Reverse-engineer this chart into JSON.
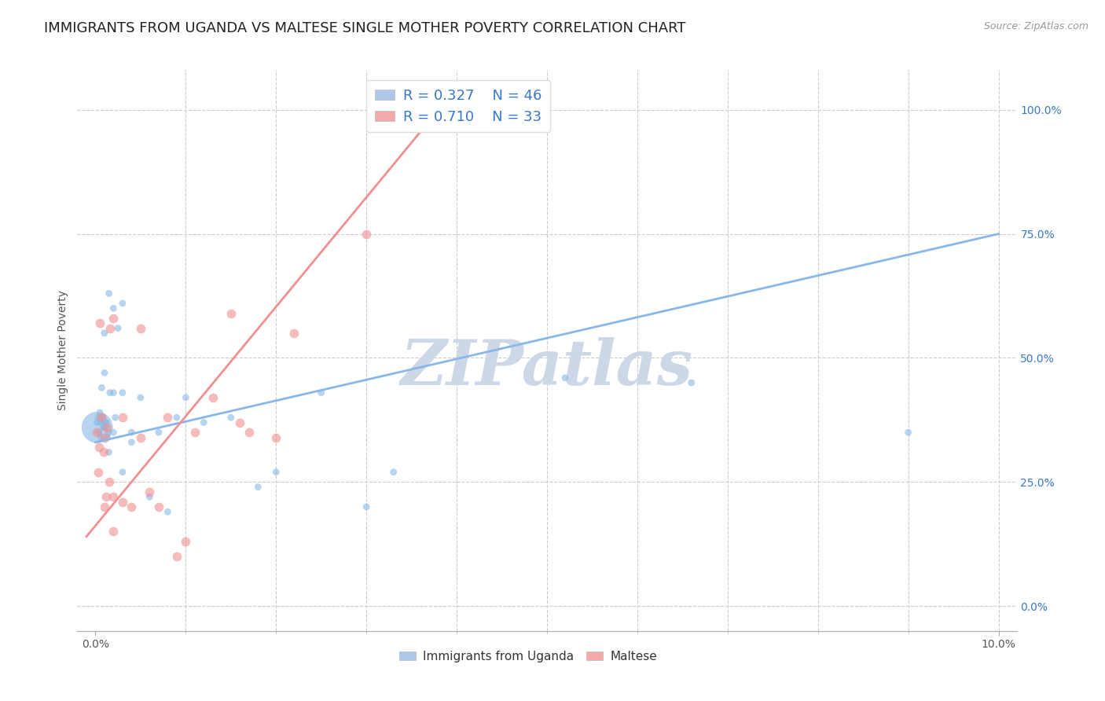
{
  "title": "IMMIGRANTS FROM UGANDA VS MALTESE SINGLE MOTHER POVERTY CORRELATION CHART",
  "source": "Source: ZipAtlas.com",
  "ylabel": "Single Mother Poverty",
  "x_tick_labels": [
    "0.0%",
    "",
    "",
    "",
    "",
    "",
    "",
    "",
    "",
    "",
    "10.0%"
  ],
  "x_tick_values": [
    0.0,
    0.01,
    0.02,
    0.03,
    0.04,
    0.05,
    0.06,
    0.07,
    0.08,
    0.09,
    0.1
  ],
  "x_minor_ticks": [
    0.01,
    0.02,
    0.03,
    0.04,
    0.05,
    0.06,
    0.07,
    0.08,
    0.09
  ],
  "y_tick_labels": [
    "0.0%",
    "25.0%",
    "50.0%",
    "75.0%",
    "100.0%"
  ],
  "y_tick_values": [
    0.0,
    0.25,
    0.5,
    0.75,
    1.0
  ],
  "xlim": [
    -0.002,
    0.102
  ],
  "ylim": [
    -0.05,
    1.08
  ],
  "legend_entries": [
    {
      "label": "Immigrants from Uganda",
      "color": "#aec6e8",
      "R": "0.327",
      "N": "46"
    },
    {
      "label": "Maltese",
      "color": "#f4aaaa",
      "R": "0.710",
      "N": "33"
    }
  ],
  "blue_scatter_x": [
    0.0002,
    0.0002,
    0.0003,
    0.0004,
    0.0005,
    0.0006,
    0.0006,
    0.0007,
    0.0008,
    0.0009,
    0.001,
    0.001,
    0.001,
    0.001,
    0.0012,
    0.0013,
    0.0014,
    0.0015,
    0.0015,
    0.0016,
    0.002,
    0.002,
    0.002,
    0.0022,
    0.0025,
    0.003,
    0.003,
    0.003,
    0.004,
    0.004,
    0.005,
    0.006,
    0.007,
    0.008,
    0.009,
    0.01,
    0.012,
    0.015,
    0.018,
    0.02,
    0.025,
    0.03,
    0.033,
    0.052,
    0.066,
    0.09
  ],
  "blue_scatter_y": [
    0.36,
    0.37,
    0.38,
    0.35,
    0.39,
    0.34,
    0.37,
    0.44,
    0.38,
    0.36,
    0.36,
    0.37,
    0.47,
    0.55,
    0.37,
    0.34,
    0.35,
    0.31,
    0.63,
    0.43,
    0.35,
    0.43,
    0.6,
    0.38,
    0.56,
    0.27,
    0.43,
    0.61,
    0.33,
    0.35,
    0.42,
    0.22,
    0.35,
    0.19,
    0.38,
    0.42,
    0.37,
    0.38,
    0.24,
    0.27,
    0.43,
    0.2,
    0.27,
    0.46,
    0.45,
    0.35
  ],
  "blue_scatter_size": [
    800,
    35,
    35,
    35,
    35,
    35,
    35,
    35,
    35,
    35,
    35,
    35,
    35,
    35,
    35,
    35,
    35,
    35,
    35,
    35,
    35,
    35,
    35,
    35,
    35,
    35,
    35,
    35,
    35,
    35,
    35,
    35,
    35,
    35,
    35,
    35,
    35,
    35,
    35,
    35,
    35,
    35,
    35,
    35,
    35,
    35
  ],
  "pink_scatter_x": [
    0.0001,
    0.0003,
    0.0004,
    0.0005,
    0.0007,
    0.0009,
    0.001,
    0.001,
    0.0012,
    0.0013,
    0.0015,
    0.0016,
    0.002,
    0.002,
    0.002,
    0.003,
    0.003,
    0.004,
    0.005,
    0.005,
    0.006,
    0.007,
    0.008,
    0.009,
    0.01,
    0.011,
    0.013,
    0.015,
    0.016,
    0.017,
    0.02,
    0.022,
    0.03
  ],
  "pink_scatter_y": [
    0.35,
    0.27,
    0.32,
    0.57,
    0.38,
    0.31,
    0.2,
    0.34,
    0.22,
    0.36,
    0.25,
    0.56,
    0.15,
    0.22,
    0.58,
    0.21,
    0.38,
    0.2,
    0.34,
    0.56,
    0.23,
    0.2,
    0.38,
    0.1,
    0.13,
    0.35,
    0.42,
    0.59,
    0.37,
    0.35,
    0.34,
    0.55,
    0.75
  ],
  "blue_line_x": [
    0.0,
    0.1
  ],
  "blue_line_y": [
    0.33,
    0.75
  ],
  "pink_line_x": [
    -0.001,
    0.038
  ],
  "pink_line_y": [
    0.14,
    1.0
  ],
  "scatter_alpha_blue": 0.6,
  "scatter_alpha_pink": 0.6,
  "scatter_color_blue": "#88b8e8",
  "scatter_color_pink": "#f09090",
  "line_color_blue": "#88b8e8",
  "line_color_pink": "#f09090",
  "grid_color": "#cccccc",
  "background_color": "#ffffff",
  "title_fontsize": 13,
  "axis_label_fontsize": 10,
  "tick_fontsize": 10,
  "legend_R_color": "#3878c8",
  "watermark": "ZIPatlas",
  "watermark_color": "#ccd8e8",
  "bottom_legend_labels": [
    "Immigrants from Uganda",
    "Maltese"
  ],
  "bottom_legend_colors": [
    "#aec6e8",
    "#f4aaaa"
  ]
}
